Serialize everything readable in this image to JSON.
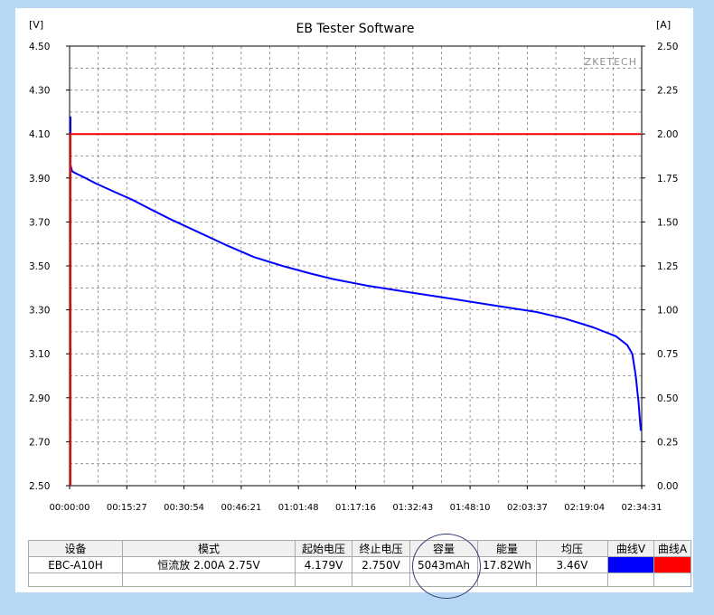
{
  "chart_data": {
    "type": "line",
    "title": "EB Tester Software",
    "watermark": "ZKETECH",
    "left_axis": {
      "unit": "[V]",
      "range": [
        2.5,
        4.5
      ],
      "ticks": [
        "4.50",
        "4.30",
        "4.10",
        "3.90",
        "3.70",
        "3.50",
        "3.30",
        "3.10",
        "2.90",
        "2.70",
        "2.50"
      ]
    },
    "right_axis": {
      "unit": "[A]",
      "range": [
        0.0,
        2.5
      ],
      "ticks": [
        "2.50",
        "2.25",
        "2.00",
        "1.75",
        "1.50",
        "1.25",
        "1.00",
        "0.75",
        "0.50",
        "0.25",
        "0.00"
      ]
    },
    "x_axis": {
      "range_seconds": [
        0,
        9271
      ],
      "ticks": [
        "00:00:00",
        "00:15:27",
        "00:30:54",
        "00:46:21",
        "01:01:48",
        "01:17:16",
        "01:32:43",
        "01:48:10",
        "02:03:37",
        "02:19:04",
        "02:34:31"
      ]
    },
    "grid": true,
    "series": [
      {
        "name": "曲线V",
        "axis": "left",
        "color": "#0000ff",
        "points": [
          [
            0,
            4.18
          ],
          [
            0,
            3.96
          ],
          [
            15,
            3.95
          ],
          [
            60,
            3.93
          ],
          [
            200,
            3.92
          ],
          [
            450,
            3.905
          ],
          [
            900,
            3.875
          ],
          [
            1500,
            3.84
          ],
          [
            2200,
            3.8
          ],
          [
            2800,
            3.76
          ],
          [
            3500,
            3.715
          ],
          [
            4500,
            3.655
          ],
          [
            5500,
            3.595
          ],
          [
            6500,
            3.54
          ],
          [
            7500,
            3.5
          ],
          [
            8500,
            3.465
          ],
          [
            9300,
            3.44
          ],
          [
            10500,
            3.41
          ],
          [
            12000,
            3.38
          ],
          [
            13500,
            3.35
          ],
          [
            15000,
            3.32
          ],
          [
            16500,
            3.29
          ],
          [
            17500,
            3.26
          ],
          [
            18500,
            3.22
          ],
          [
            19300,
            3.18
          ],
          [
            19700,
            3.14
          ],
          [
            19880,
            3.1
          ],
          [
            20000,
            3.0
          ],
          [
            20100,
            2.88
          ],
          [
            20160,
            2.78
          ],
          [
            20180,
            2.75
          ]
        ],
        "x_scale_note": "source units"
      },
      {
        "name": "曲线A",
        "axis": "right",
        "color": "#ff0000",
        "points": [
          [
            0,
            0.0
          ],
          [
            0,
            2.0
          ],
          [
            9271,
            2.0
          ]
        ]
      }
    ]
  },
  "table": {
    "headers": [
      "设备",
      "模式",
      "起始电压",
      "终止电压",
      "容量",
      "能量",
      "均压",
      "曲线V",
      "曲线A"
    ],
    "row": {
      "device": "EBC-A10H",
      "mode": "恒流放  2.00A  2.75V",
      "start_voltage": "4.179V",
      "end_voltage": "2.750V",
      "capacity": "5043mAh",
      "energy": "17.82Wh",
      "avg_voltage": "3.46V",
      "curve_v_color": "#0000ff",
      "curve_a_color": "#ff0000"
    }
  }
}
